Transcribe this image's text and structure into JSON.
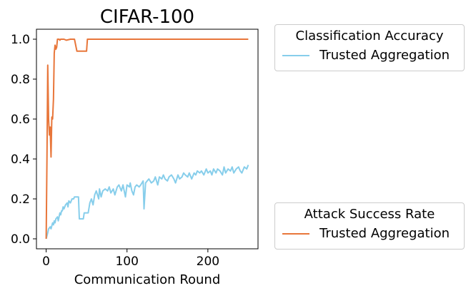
{
  "chart_data": {
    "type": "line",
    "title": "CIFAR-100",
    "xlabel": "Communication Round",
    "ylabel": "",
    "xlim": [
      -12,
      262
    ],
    "ylim": [
      -0.05,
      1.05
    ],
    "xticks": [
      0,
      100,
      200
    ],
    "yticks": [
      0.0,
      0.2,
      0.4,
      0.6,
      0.8,
      1.0
    ],
    "xtick_labels": [
      "0",
      "100",
      "200"
    ],
    "ytick_labels": [
      "0.0",
      "0.2",
      "0.4",
      "0.6",
      "0.8",
      "1.0"
    ],
    "grid": false,
    "series": [
      {
        "legend_group": "acc",
        "name": "Trusted Aggregation",
        "color": "#87ceeb",
        "x": [
          0,
          2,
          3,
          5,
          6,
          8,
          9,
          10,
          11,
          12,
          14,
          15,
          17,
          18,
          19,
          20,
          21,
          22,
          24,
          26,
          27,
          28,
          30,
          32,
          34,
          35,
          37,
          40,
          41,
          42,
          43,
          46,
          47,
          50,
          51,
          52,
          54,
          56,
          58,
          60,
          62,
          65,
          66,
          68,
          70,
          73,
          76,
          78,
          80,
          83,
          85,
          88,
          90,
          93,
          95,
          98,
          100,
          103,
          104,
          106,
          108,
          110,
          112,
          115,
          117,
          120,
          121,
          123,
          125,
          127,
          130,
          133,
          135,
          138,
          140,
          143,
          145,
          147,
          150,
          152,
          155,
          158,
          160,
          163,
          165,
          168,
          170,
          172,
          175,
          177,
          180,
          183,
          185,
          187,
          190,
          192,
          195,
          198,
          200,
          203,
          205,
          207,
          210,
          212,
          215,
          218,
          220,
          222,
          225,
          228,
          230,
          232,
          235,
          238,
          240,
          242,
          245,
          248,
          250
        ],
        "values": [
          0.0,
          0.03,
          0.05,
          0.06,
          0.05,
          0.08,
          0.07,
          0.09,
          0.08,
          0.1,
          0.11,
          0.09,
          0.13,
          0.12,
          0.14,
          0.14,
          0.16,
          0.15,
          0.17,
          0.18,
          0.16,
          0.19,
          0.18,
          0.2,
          0.2,
          0.21,
          0.21,
          0.21,
          0.1,
          0.1,
          0.1,
          0.1,
          0.13,
          0.13,
          0.13,
          0.13,
          0.18,
          0.2,
          0.17,
          0.22,
          0.24,
          0.2,
          0.25,
          0.21,
          0.24,
          0.25,
          0.24,
          0.26,
          0.23,
          0.25,
          0.22,
          0.26,
          0.27,
          0.24,
          0.27,
          0.21,
          0.27,
          0.26,
          0.28,
          0.24,
          0.22,
          0.26,
          0.27,
          0.26,
          0.27,
          0.29,
          0.15,
          0.28,
          0.29,
          0.3,
          0.28,
          0.29,
          0.31,
          0.27,
          0.31,
          0.3,
          0.32,
          0.3,
          0.29,
          0.31,
          0.32,
          0.3,
          0.28,
          0.32,
          0.3,
          0.31,
          0.33,
          0.32,
          0.31,
          0.33,
          0.3,
          0.33,
          0.32,
          0.34,
          0.33,
          0.34,
          0.32,
          0.35,
          0.33,
          0.34,
          0.32,
          0.35,
          0.33,
          0.35,
          0.34,
          0.32,
          0.36,
          0.33,
          0.35,
          0.34,
          0.36,
          0.33,
          0.35,
          0.36,
          0.34,
          0.33,
          0.36,
          0.35,
          0.37
        ]
      },
      {
        "legend_group": "asr",
        "name": "Trusted Aggregation",
        "color": "#e8763a",
        "x": [
          0,
          1,
          2,
          3,
          4,
          5,
          6,
          7,
          8,
          9,
          10,
          11,
          12,
          13,
          14,
          15,
          16,
          17,
          18,
          20,
          22,
          25,
          30,
          35,
          38,
          39,
          40,
          45,
          50,
          51,
          52,
          60,
          80,
          100,
          120,
          150,
          200,
          250
        ],
        "values": [
          0.0,
          0.4,
          0.87,
          0.6,
          0.52,
          0.56,
          0.41,
          0.61,
          0.6,
          0.7,
          0.93,
          0.97,
          0.95,
          0.96,
          1.0,
          1.0,
          1.0,
          0.995,
          1.0,
          1.0,
          1.0,
          0.995,
          1.0,
          1.0,
          0.94,
          0.94,
          0.94,
          0.94,
          0.94,
          1.0,
          1.0,
          1.0,
          1.0,
          1.0,
          1.0,
          1.0,
          1.0,
          1.0
        ]
      }
    ]
  },
  "legends": {
    "acc": {
      "title": "Classification Accuracy",
      "label": "Trusted Aggregation"
    },
    "asr": {
      "title": "Attack Success Rate",
      "label": "Trusted Aggregation"
    }
  }
}
